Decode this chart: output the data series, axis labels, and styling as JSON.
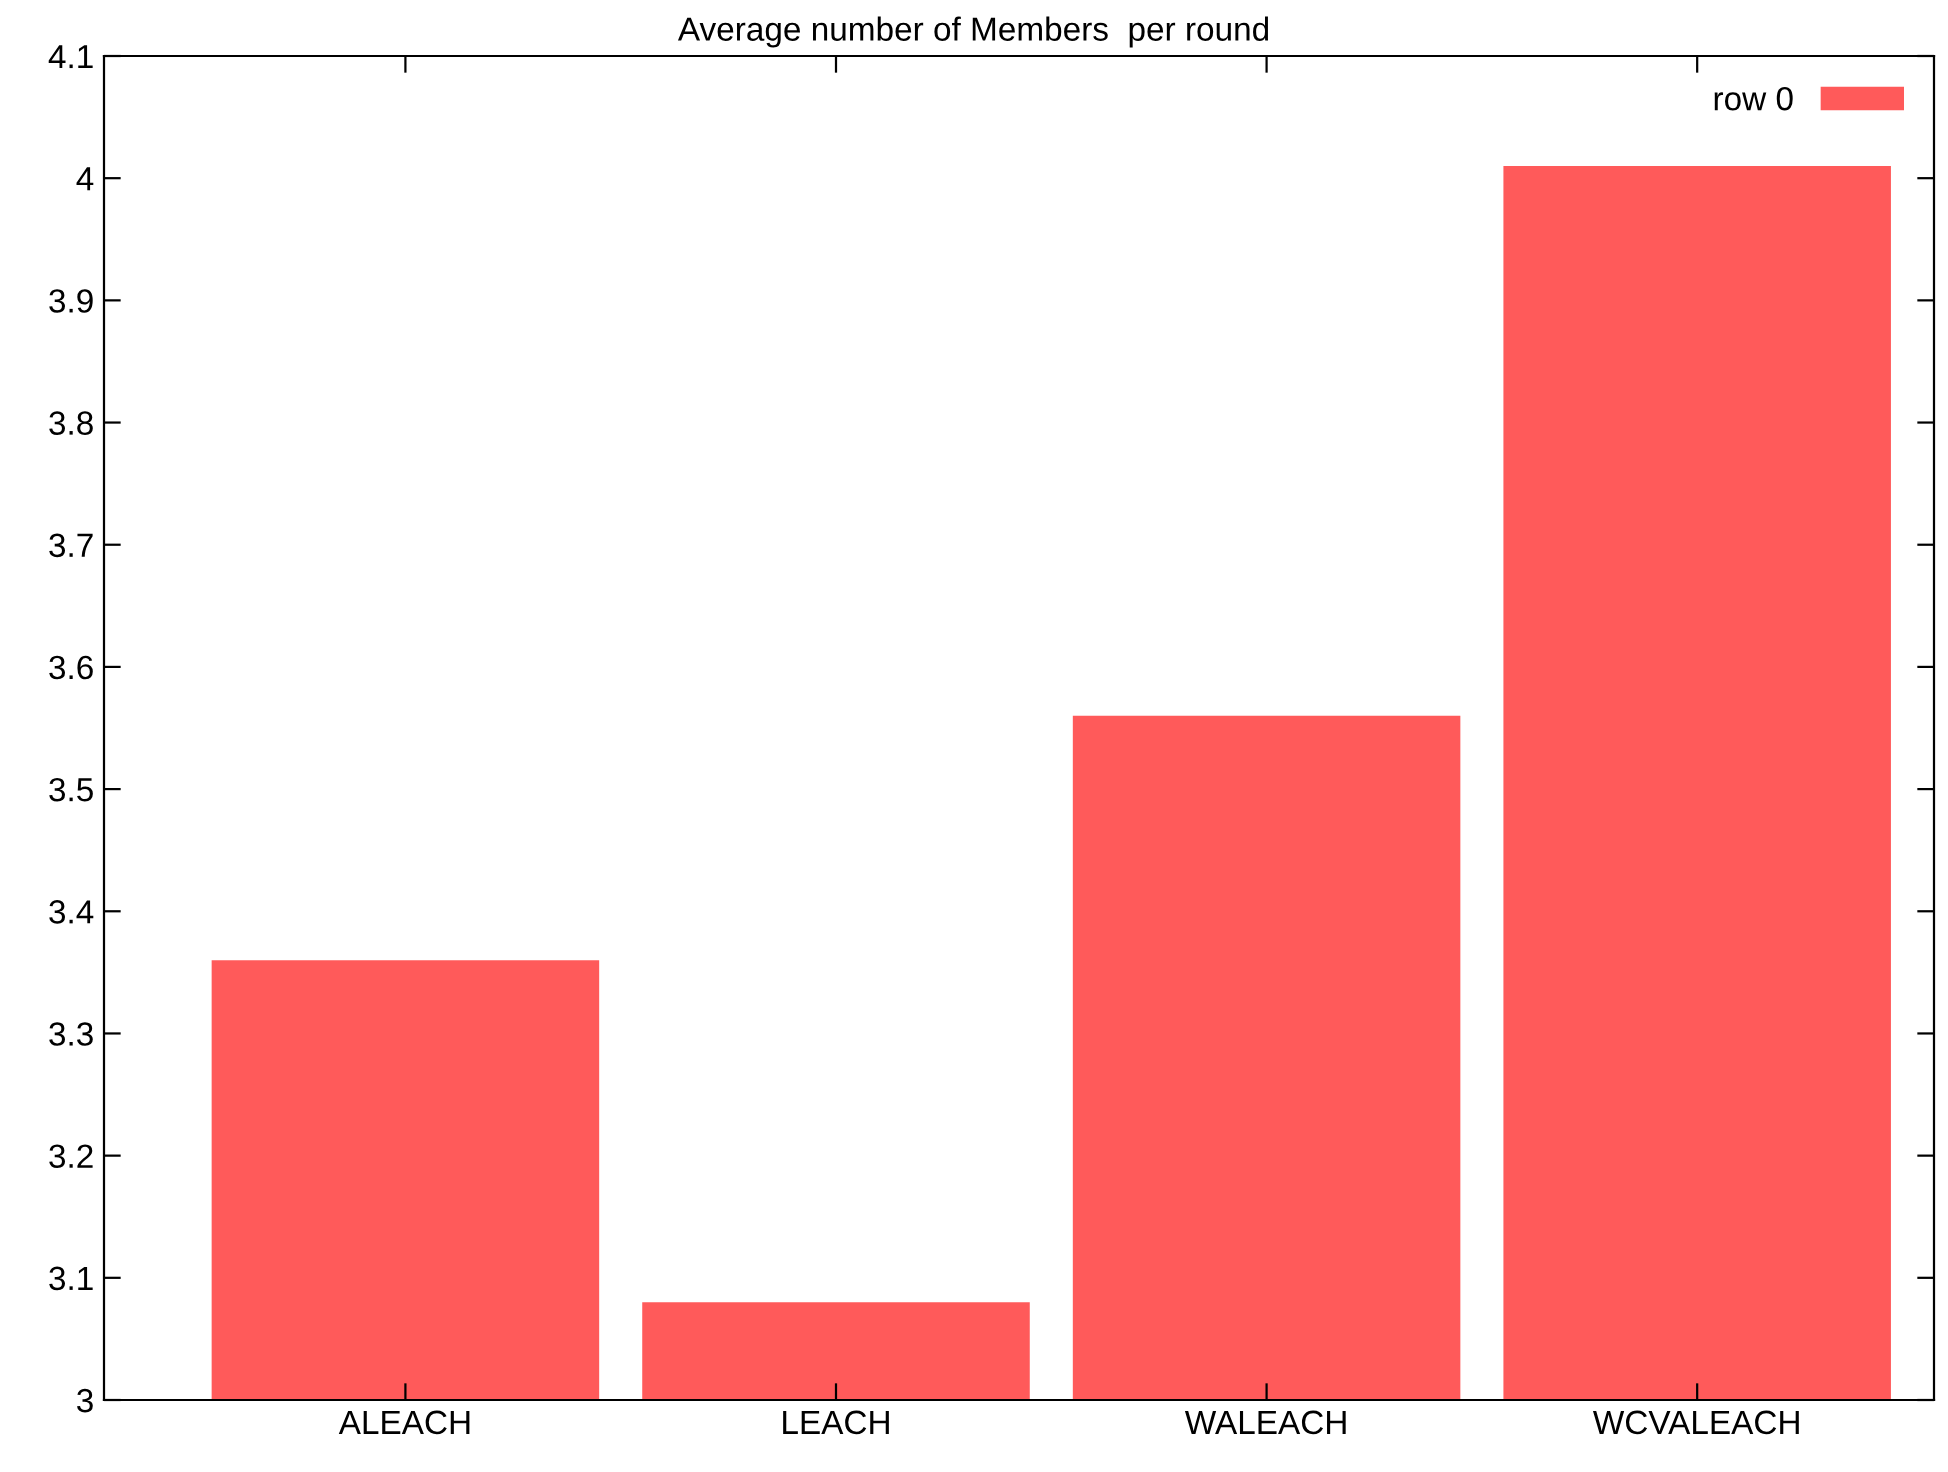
{
  "chart_data": {
    "type": "bar",
    "title": "Average number of Members  per round",
    "categories": [
      "ALEACH",
      "LEACH",
      "WALEACH",
      "WCVALEACH"
    ],
    "series": [
      {
        "name": "row 0",
        "color": "#ff5a5a",
        "values": [
          3.36,
          3.08,
          3.56,
          4.01
        ]
      }
    ],
    "ylim": [
      3,
      4.1
    ],
    "yticks": [
      3,
      3.1,
      3.2,
      3.3,
      3.4,
      3.5,
      3.6,
      3.7,
      3.8,
      3.9,
      4,
      4.1
    ],
    "grid": false,
    "legend": "top right"
  }
}
